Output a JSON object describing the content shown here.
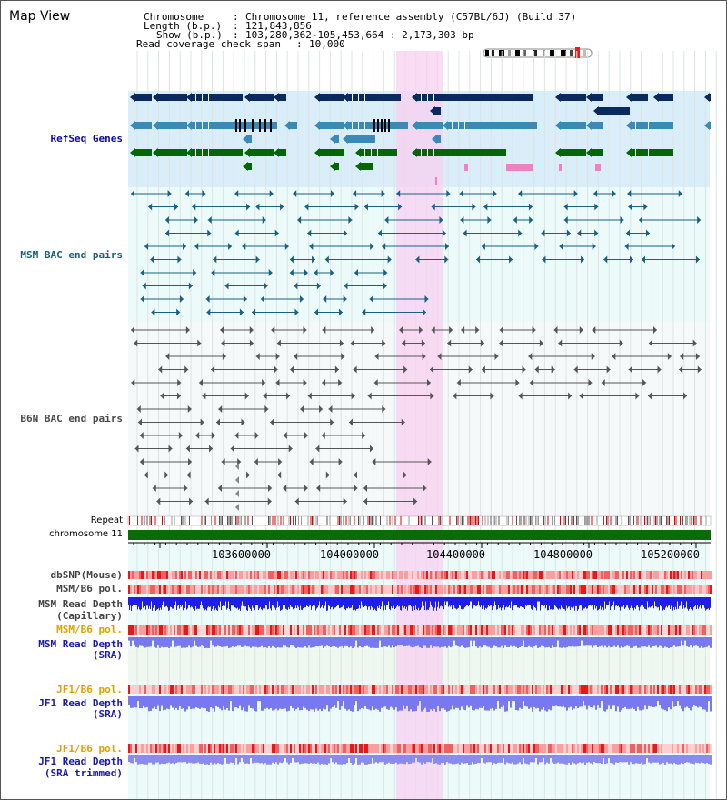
{
  "title": "Map View",
  "header": {
    "chromosome_label": "Chromosome",
    "chromosome_value": "Chromosome 11, reference assembly (C57BL/6J) (Build 37)",
    "length_label": "Length (b.p.)",
    "length_value": "121,843,856",
    "show_label": "Show (b.p.)",
    "show_value": "103,280,362-105,453,664 : 2,173,303 bp",
    "coverage_label": "Read coverage check span",
    "coverage_value": "10,000"
  },
  "tracks": {
    "refseq": {
      "label": "RefSeq Genes",
      "color": "#0b0b9a"
    },
    "msm_bac": {
      "label": "MSM BAC end pairs",
      "color": "#1a5f78"
    },
    "b6n_bac": {
      "label": "B6N BAC end pairs",
      "color": "#4a4a4a"
    },
    "repeat": {
      "label": "Repeat"
    },
    "chromosome": {
      "label": "chromosome 11"
    },
    "dbsnp": {
      "label": "dbSNP(Mouse)"
    },
    "msm_pol1": {
      "label": "MSM/B6 pol."
    },
    "msm_depth_cap": {
      "label_line1": "MSM Read Depth",
      "label_line2": "(Capillary)"
    },
    "msm_pol2": {
      "label": "MSM/B6 pol.",
      "color": "#e0a000"
    },
    "msm_depth_sra": {
      "label_line1": "MSM Read Depth",
      "label_line2": "(SRA)",
      "color": "#1a1aa8"
    },
    "jf1_pol1": {
      "label": "JF1/B6 pol.",
      "color": "#e0a000"
    },
    "jf1_depth_sra": {
      "label_line1": "JF1 Read Depth",
      "label_line2": "(SRA)",
      "color": "#1a1aa8"
    },
    "jf1_pol2": {
      "label": "JF1/B6 pol.",
      "color": "#e0a000"
    },
    "jf1_depth_trim": {
      "label_line1": "JF1 Read Depth",
      "label_line2": "(SRA trimmed)",
      "color": "#1a1aa8"
    }
  },
  "ruler": {
    "ticks": [
      "103600000",
      "104000000",
      "104400000",
      "104800000",
      "105200000"
    ]
  },
  "colors": {
    "highlight": "#f8d0f0",
    "refseq_bg": "#d9eef8",
    "light_bg": "#ecfafa",
    "green_bg": "#eef8ee",
    "gene_dark": "#0a2a5e",
    "gene_mid": "#3a8ab8",
    "gene_green": "#066606",
    "gene_pink": "#f080c0",
    "depth_blue": "#2020f0",
    "depth_light": "#7878f0"
  }
}
